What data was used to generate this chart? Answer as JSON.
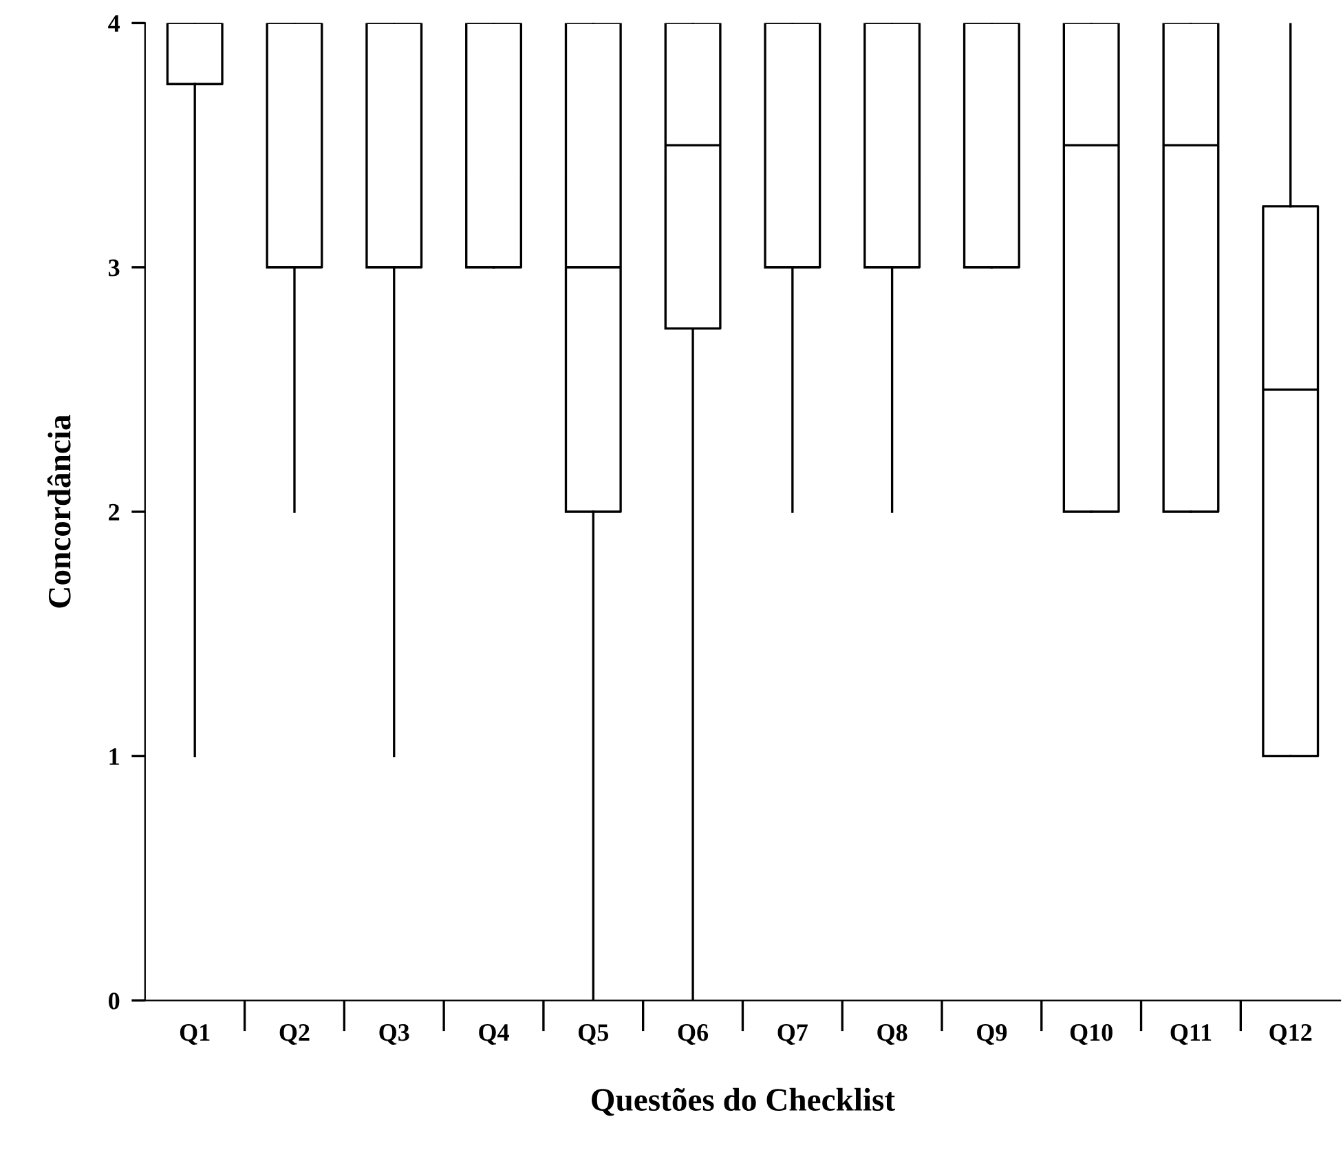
{
  "chart_data": {
    "type": "box",
    "xlabel": "Questões do Checklist",
    "ylabel": "Concordância",
    "categories": [
      "Q1",
      "Q2",
      "Q3",
      "Q4",
      "Q5",
      "Q6",
      "Q7",
      "Q8",
      "Q9",
      "Q10",
      "Q11",
      "Q12"
    ],
    "boxes": [
      {
        "low": 1,
        "q1": 3.75,
        "median": 4,
        "q3": 4,
        "high": 4
      },
      {
        "low": 2,
        "q1": 3,
        "median": 4,
        "q3": 4,
        "high": 4
      },
      {
        "low": 1,
        "q1": 3,
        "median": 4,
        "q3": 4,
        "high": 4
      },
      {
        "low": 3,
        "q1": 3,
        "median": 4,
        "q3": 4,
        "high": 4
      },
      {
        "low": 0,
        "q1": 2,
        "median": 3,
        "q3": 4,
        "high": 4
      },
      {
        "low": 0,
        "q1": 2.75,
        "median": 3.5,
        "q3": 4,
        "high": 4
      },
      {
        "low": 2,
        "q1": 3,
        "median": 4,
        "q3": 4,
        "high": 4
      },
      {
        "low": 2,
        "q1": 3,
        "median": 4,
        "q3": 4,
        "high": 4
      },
      {
        "low": 3,
        "q1": 3,
        "median": 4,
        "q3": 4,
        "high": 4
      },
      {
        "low": 2,
        "q1": 2,
        "median": 3.5,
        "q3": 4,
        "high": 4
      },
      {
        "low": 2,
        "q1": 2,
        "median": 3.5,
        "q3": 4,
        "high": 4
      },
      {
        "low": 1,
        "q1": 1,
        "median": 2.5,
        "q3": 3.25,
        "high": 4
      }
    ],
    "color": "#000000",
    "ylim": [
      0,
      4
    ],
    "yticks": [
      0,
      1,
      2,
      3,
      4
    ],
    "grid": false
  }
}
